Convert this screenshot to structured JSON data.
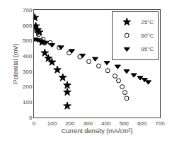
{
  "chart_data": {
    "type": "scatter",
    "xlabel": "Current density (mA/cm²)",
    "ylabel": "Potential (mV)",
    "xlim": [
      0,
      700
    ],
    "ylim": [
      0,
      700
    ],
    "xticks": [
      0,
      100,
      200,
      300,
      400,
      500,
      600,
      700
    ],
    "yticks": [
      0,
      100,
      200,
      300,
      400,
      500,
      600,
      700
    ],
    "grid": false,
    "legend": "upper right",
    "series": [
      {
        "name": "25°C",
        "color": "black",
        "marker": "star",
        "x": [
          5,
          10,
          20,
          30,
          45,
          60,
          80,
          100,
          130,
          160,
          185,
          185,
          185
        ],
        "values": [
          650,
          595,
          570,
          555,
          490,
          420,
          385,
          360,
          310,
          260,
          210,
          165,
          75
        ]
      },
      {
        "name": "60°C",
        "color": "black",
        "marker": "circle-open",
        "x": [
          5,
          15,
          25,
          50,
          90,
          140,
          195,
          255,
          305,
          360,
          410,
          450,
          470,
          490,
          505,
          515
        ],
        "values": [
          590,
          563,
          540,
          510,
          487,
          455,
          420,
          395,
          365,
          335,
          305,
          270,
          240,
          200,
          163,
          125
        ]
      },
      {
        "name": "95°C",
        "color": "black",
        "marker": "triangle-down",
        "x": [
          5,
          20,
          40,
          65,
          100,
          150,
          210,
          270,
          340,
          405,
          465,
          515,
          555,
          590,
          615,
          635
        ],
        "values": [
          510,
          505,
          495,
          488,
          473,
          458,
          435,
          405,
          383,
          358,
          333,
          303,
          278,
          260,
          247,
          232
        ]
      }
    ]
  }
}
